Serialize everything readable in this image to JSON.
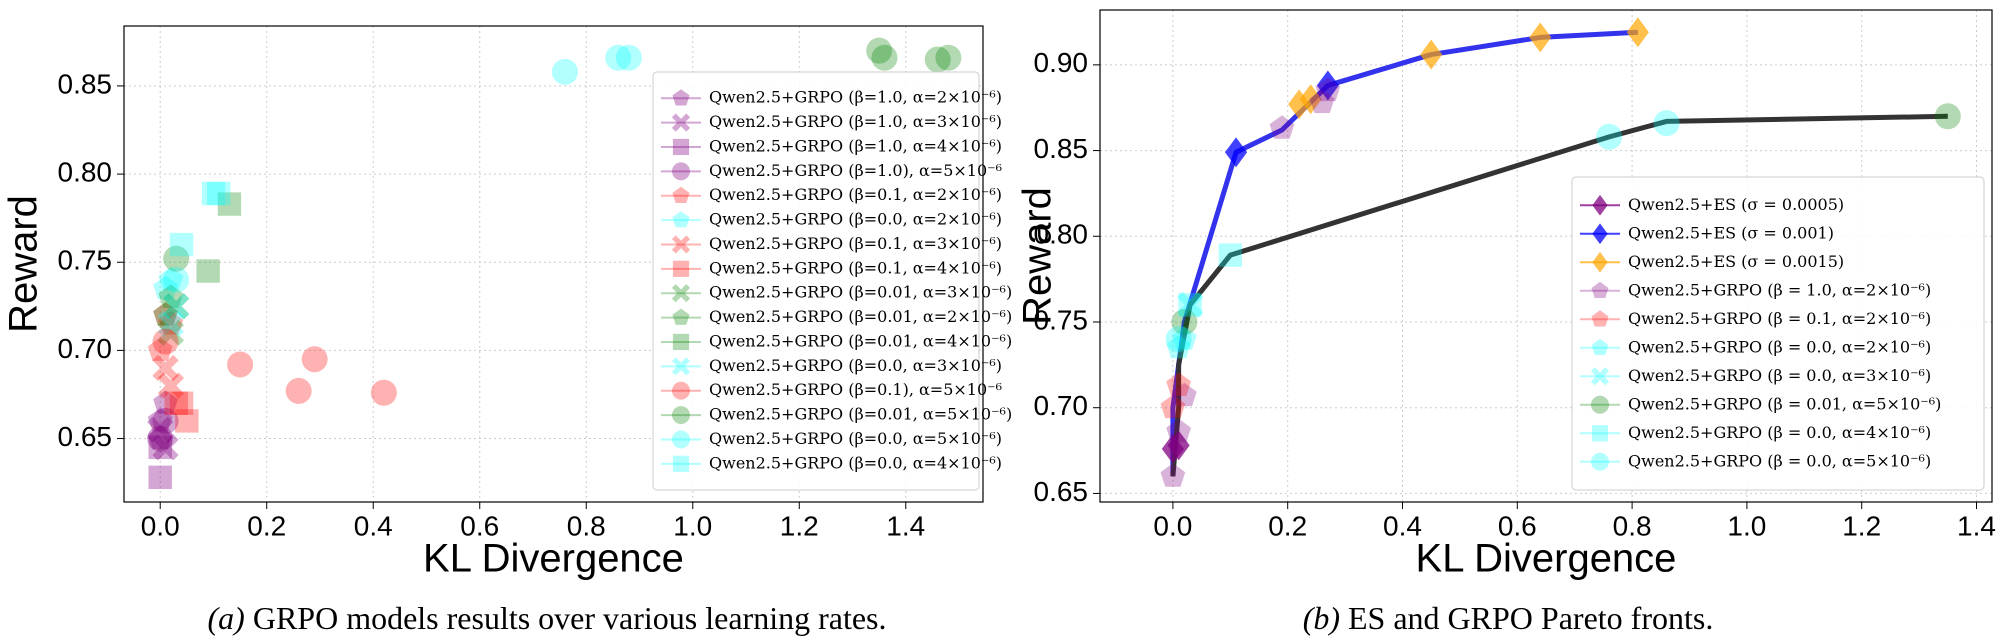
{
  "chart_data": [
    {
      "type": "scatter",
      "x_label": "KL Divergence",
      "y_label": "Reward",
      "caption_label": "(a)",
      "caption": "GRPO models results over various learning rates.",
      "xlim": [
        -0.068,
        1.545
      ],
      "ylim": [
        0.614,
        0.884
      ],
      "xticks": [
        {
          "value": 0,
          "label": "0.0"
        },
        0.2,
        0.4,
        0.6,
        0.8,
        {
          "value": 1,
          "label": "1.0"
        },
        1.2,
        1.4
      ],
      "yticks": [
        0.65,
        {
          "value": 0.7,
          "label": "0.70"
        },
        0.75,
        {
          "value": 0.8,
          "label": "0.80"
        },
        0.85
      ],
      "grid": true,
      "legend": "upper right",
      "series": [
        {
          "name": "Qwen2.5+GRPO (β=1.0, α=2×10⁻⁶)",
          "color": "#800080",
          "alpha": 0.35,
          "marker": "pentagon",
          "x": [
            0.0,
            0.01,
            0.0
          ],
          "y": [
            0.66,
            0.67,
            0.65
          ]
        },
        {
          "name": "Qwen2.5+GRPO (β=1.0, α=3×10⁻⁶)",
          "color": "#800080",
          "alpha": 0.35,
          "marker": "x",
          "x": [
            0.0,
            0.01
          ],
          "y": [
            0.655,
            0.645
          ]
        },
        {
          "name": "Qwen2.5+GRPO (β=1.0, α=4×10⁻⁶)",
          "color": "#800080",
          "alpha": 0.35,
          "marker": "square",
          "x": [
            0.0,
            0.0
          ],
          "y": [
            0.628,
            0.645
          ]
        },
        {
          "name": "Qwen2.5+GRPO (β=1.0), α=5×10⁻⁶",
          "color": "#800080",
          "alpha": 0.35,
          "marker": "circle",
          "x": [
            0.0,
            0.01
          ],
          "y": [
            0.65,
            0.66
          ]
        },
        {
          "name": "Qwen2.5+GRPO (β=0.1, α=2×10⁻⁶)",
          "color": "#ff0000",
          "alpha": 0.3,
          "marker": "pentagon",
          "x": [
            0.0,
            0.01,
            0.02
          ],
          "y": [
            0.7,
            0.72,
            0.715
          ]
        },
        {
          "name": "Qwen2.5+GRPO (β=0.0, α=2×10⁻⁶)",
          "color": "#00ffff",
          "alpha": 0.3,
          "marker": "pentagon",
          "x": [
            0.01,
            0.02
          ],
          "y": [
            0.735,
            0.74
          ]
        },
        {
          "name": "Qwen2.5+GRPO (β=0.1, α=3×10⁻⁶)",
          "color": "#ff0000",
          "alpha": 0.3,
          "marker": "x",
          "x": [
            0.01,
            0.02
          ],
          "y": [
            0.69,
            0.68
          ]
        },
        {
          "name": "Qwen2.5+GRPO (β=0.1, α=4×10⁻⁶)",
          "color": "#ff0000",
          "alpha": 0.3,
          "marker": "square",
          "x": [
            0.03,
            0.05,
            0.04
          ],
          "y": [
            0.67,
            0.66,
            0.67
          ]
        },
        {
          "name": "Qwen2.5+GRPO (β=0.01, α=3×10⁻⁶)",
          "color": "#008000",
          "alpha": 0.3,
          "marker": "x",
          "x": [
            0.02,
            0.03
          ],
          "y": [
            0.71,
            0.725
          ]
        },
        {
          "name": "Qwen2.5+GRPO (β=0.01, α=2×10⁻⁶)",
          "color": "#008000",
          "alpha": 0.3,
          "marker": "pentagon",
          "x": [
            0.02,
            0.01
          ],
          "y": [
            0.73,
            0.72
          ]
        },
        {
          "name": "Qwen2.5+GRPO (β=0.01, α=4×10⁻⁶)",
          "color": "#008000",
          "alpha": 0.3,
          "marker": "square",
          "x": [
            0.09,
            0.13
          ],
          "y": [
            0.745,
            0.783
          ]
        },
        {
          "name": "Qwen2.5+GRPO (β=0.0, α=3×10⁻⁶)",
          "color": "#00ffff",
          "alpha": 0.3,
          "marker": "x",
          "x": [
            0.03,
            0.02
          ],
          "y": [
            0.725,
            0.715
          ]
        },
        {
          "name": "Qwen2.5+GRPO (β=0.1), α=5×10⁻⁶",
          "color": "#ff0000",
          "alpha": 0.3,
          "marker": "circle",
          "x": [
            0.15,
            0.26,
            0.29,
            0.42,
            0.01
          ],
          "y": [
            0.692,
            0.677,
            0.695,
            0.676,
            0.705
          ]
        },
        {
          "name": "Qwen2.5+GRPO (β=0.01, α=5×10⁻⁶)",
          "color": "#008000",
          "alpha": 0.3,
          "marker": "circle",
          "x": [
            1.35,
            1.36,
            1.46,
            1.48,
            0.03
          ],
          "y": [
            0.87,
            0.866,
            0.865,
            0.866,
            0.752
          ]
        },
        {
          "name": "Qwen2.5+GRPO (β=0.0, α=5×10⁻⁶)",
          "color": "#00ffff",
          "alpha": 0.3,
          "marker": "circle",
          "x": [
            0.76,
            0.86,
            0.88,
            0.03
          ],
          "y": [
            0.858,
            0.866,
            0.866,
            0.74
          ]
        },
        {
          "name": "Qwen2.5+GRPO (β=0.0, α=4×10⁻⁶)",
          "color": "#00ffff",
          "alpha": 0.3,
          "marker": "square",
          "x": [
            0.1,
            0.11,
            0.04
          ],
          "y": [
            0.789,
            0.789,
            0.76
          ]
        }
      ]
    },
    {
      "type": "scatter",
      "x_label": "KL Divergence",
      "y_label": "Reward",
      "caption_label": "(b)",
      "caption": "ES and GRPO Pareto fronts.",
      "xlim": [
        -0.127,
        1.427
      ],
      "ylim": [
        0.645,
        0.932
      ],
      "xticks": [
        {
          "value": 0,
          "label": "0.0"
        },
        0.2,
        0.4,
        0.6,
        0.8,
        {
          "value": 1,
          "label": "1.0"
        },
        1.2,
        1.4
      ],
      "yticks": [
        0.65,
        {
          "value": 0.7,
          "label": "0.70"
        },
        0.75,
        {
          "value": 0.8,
          "label": "0.80"
        },
        0.85,
        {
          "value": 0.9,
          "label": "0.90"
        }
      ],
      "grid": true,
      "legend": "lower right",
      "fronts": [
        {
          "color": "#3333ee",
          "x": [
            0.0,
            0.0,
            0.02,
            0.11,
            0.19,
            0.27,
            0.45,
            0.64,
            0.81
          ],
          "y": [
            0.66,
            0.7,
            0.75,
            0.849,
            0.862,
            0.888,
            0.906,
            0.916,
            0.919
          ]
        },
        {
          "color": "#333333",
          "x": [
            0.0,
            0.01,
            0.01,
            0.03,
            0.1,
            0.76,
            0.86,
            1.35
          ],
          "y": [
            0.66,
            0.7,
            0.725,
            0.76,
            0.789,
            0.858,
            0.867,
            0.87
          ]
        }
      ],
      "series": [
        {
          "name": "Qwen2.5+ES (σ = 0.0005)",
          "color": "#800080",
          "alpha": 0.75,
          "marker": "diamond",
          "x": [
            0.0,
            0.01
          ],
          "y": [
            0.676,
            0.678
          ]
        },
        {
          "name": "Qwen2.5+ES (σ = 0.001)",
          "color": "#0000ff",
          "alpha": 0.75,
          "marker": "diamond",
          "x": [
            0.11,
            0.27
          ],
          "y": [
            0.849,
            0.888
          ]
        },
        {
          "name": "Qwen2.5+ES (σ = 0.0015)",
          "color": "#ffa500",
          "alpha": 0.7,
          "marker": "diamond",
          "x": [
            0.22,
            0.24,
            0.45,
            0.64,
            0.81
          ],
          "y": [
            0.877,
            0.88,
            0.906,
            0.916,
            0.919
          ]
        },
        {
          "name": "Qwen2.5+GRPO (β = 1.0, α=2×10⁻⁶)",
          "color": "#800080",
          "alpha": 0.3,
          "marker": "pentagon",
          "x": [
            0.0,
            0.01,
            0.02,
            0.19,
            0.26,
            0.27
          ],
          "y": [
            0.66,
            0.686,
            0.707,
            0.863,
            0.878,
            0.885
          ]
        },
        {
          "name": "Qwen2.5+GRPO (β = 0.1, α=2×10⁻⁶)",
          "color": "#ff0000",
          "alpha": 0.3,
          "marker": "pentagon",
          "x": [
            0.0,
            0.01
          ],
          "y": [
            0.7,
            0.713
          ]
        },
        {
          "name": "Qwen2.5+GRPO (β = 0.0, α=2×10⁻⁶)",
          "color": "#00ffff",
          "alpha": 0.3,
          "marker": "pentagon",
          "x": [
            0.01,
            0.02
          ],
          "y": [
            0.735,
            0.74
          ]
        },
        {
          "name": "Qwen2.5+GRPO (β = 0.0, α=3×10⁻⁶)",
          "color": "#00ffff",
          "alpha": 0.3,
          "marker": "x",
          "x": [
            0.03
          ],
          "y": [
            0.76
          ]
        },
        {
          "name": "Qwen2.5+GRPO (β = 0.01, α=5×10⁻⁶)",
          "color": "#008000",
          "alpha": 0.3,
          "marker": "circle",
          "x": [
            0.02,
            1.35
          ],
          "y": [
            0.75,
            0.87
          ]
        },
        {
          "name": "Qwen2.5+GRPO (β = 0.0, α=4×10⁻⁶)",
          "color": "#00ffff",
          "alpha": 0.3,
          "marker": "square",
          "x": [
            0.1,
            0.03
          ],
          "y": [
            0.789,
            0.76
          ]
        },
        {
          "name": "Qwen2.5+GRPO (β = 0.0, α=5×10⁻⁶)",
          "color": "#00ffff",
          "alpha": 0.3,
          "marker": "circle",
          "x": [
            0.76,
            0.86,
            0.01
          ],
          "y": [
            0.858,
            0.866,
            0.74
          ]
        }
      ]
    }
  ]
}
